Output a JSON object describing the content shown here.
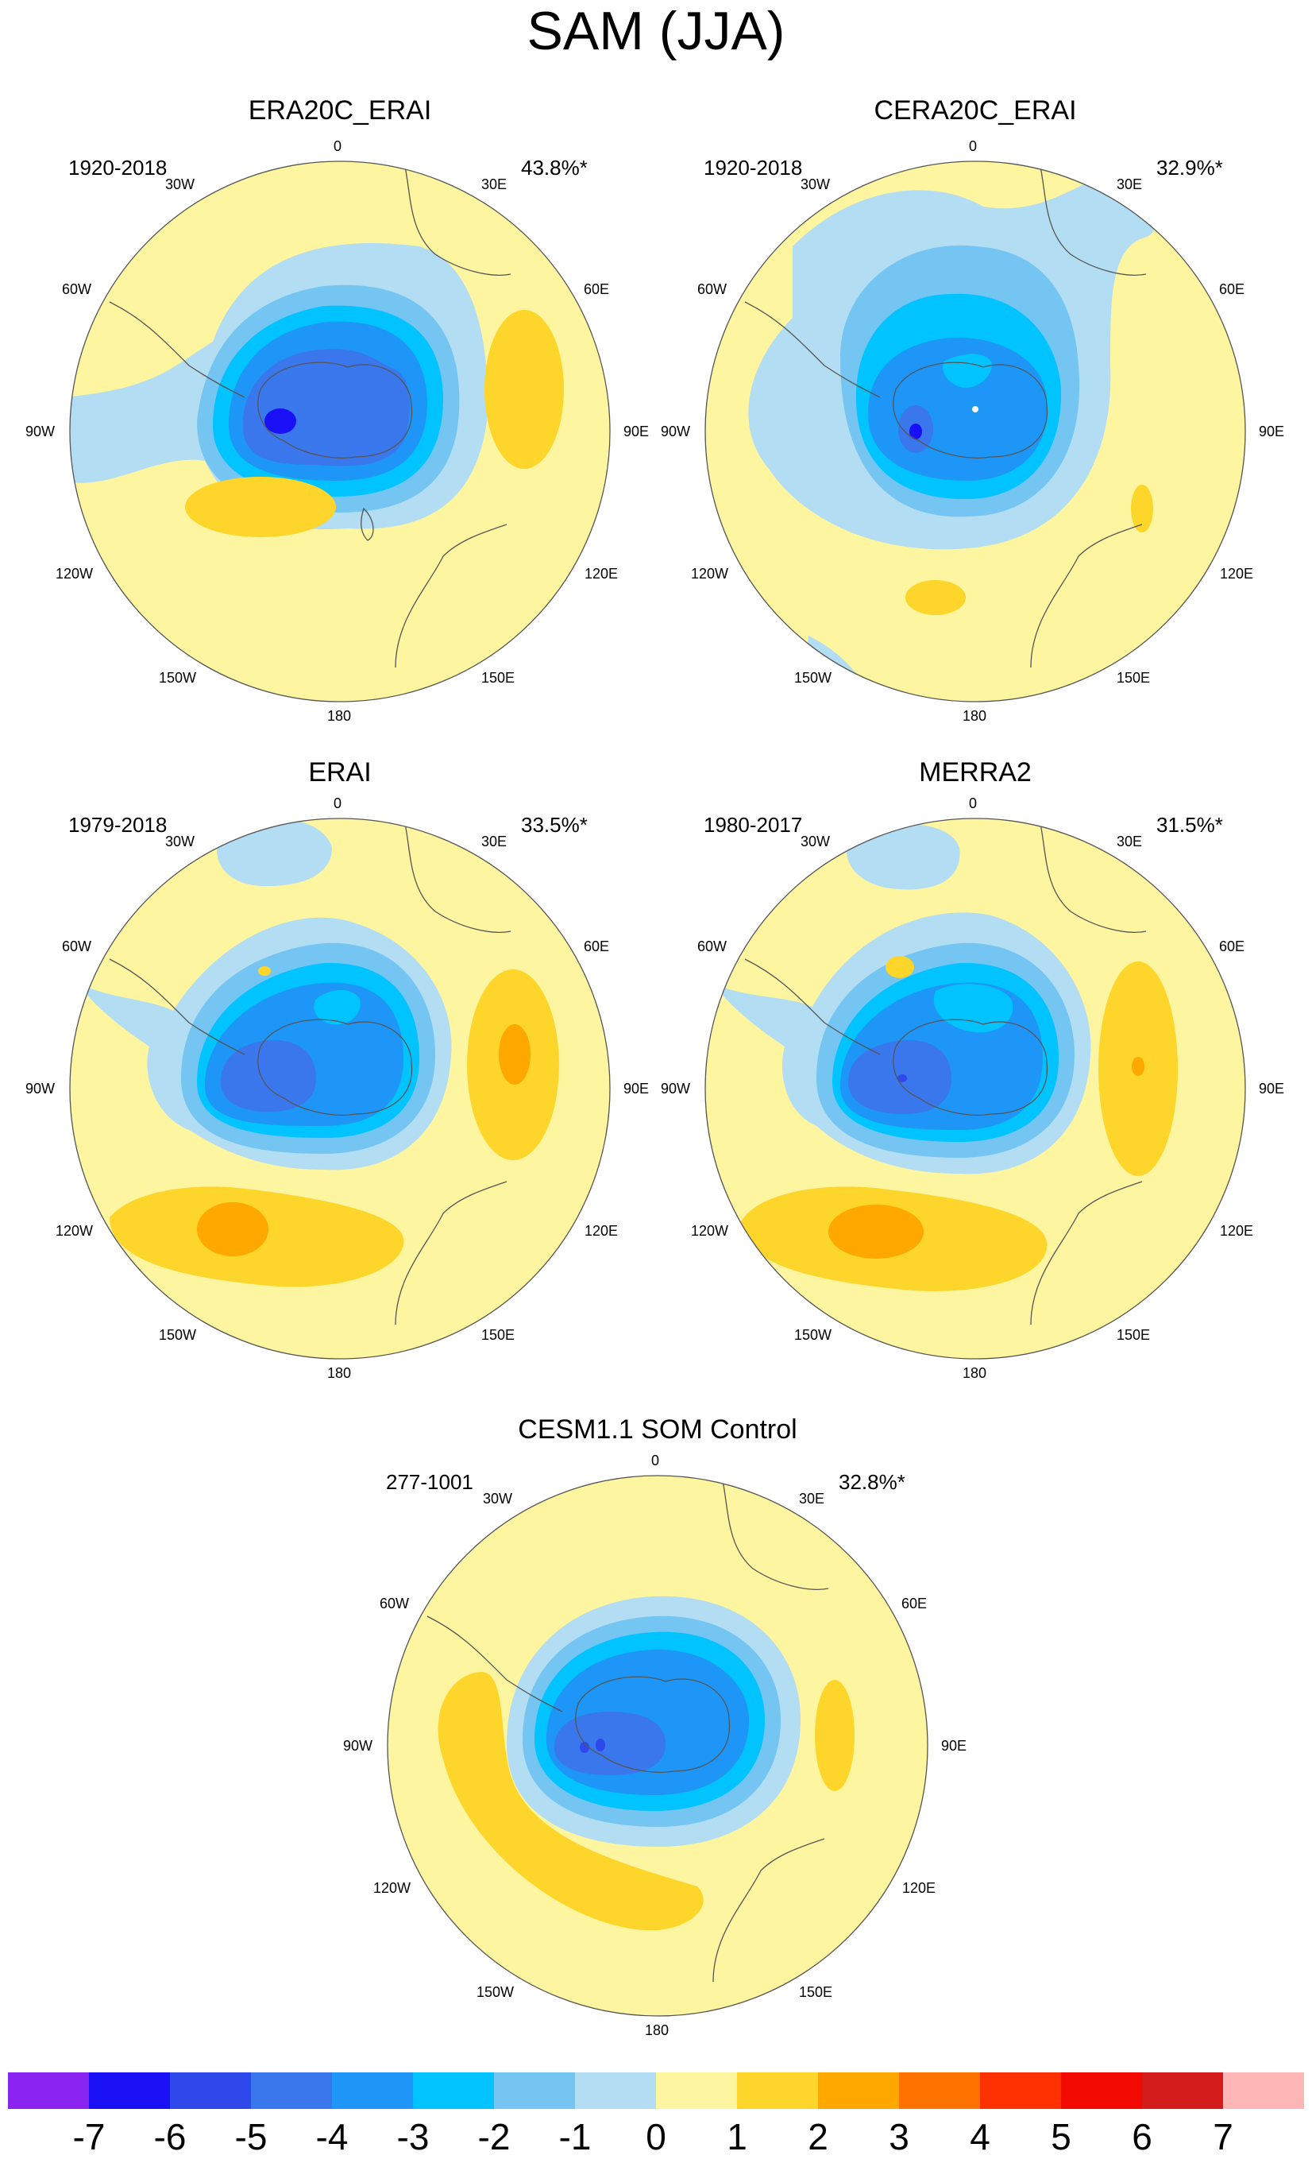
{
  "figure_title": "SAM (JJA)",
  "panels": [
    {
      "title": "ERA20C_ERAI",
      "period": "1920-2018",
      "variance": "43.8%*"
    },
    {
      "title": "CERA20C_ERAI",
      "period": "1920-2018",
      "variance": "32.9%*"
    },
    {
      "title": "ERAI",
      "period": "1979-2018",
      "variance": "33.5%*"
    },
    {
      "title": "MERRA2",
      "period": "1980-2017",
      "variance": "31.5%*"
    },
    {
      "title": "CESM1.1 SOM Control",
      "period": "277-1001",
      "variance": "32.8%*"
    }
  ],
  "longitude_labels": {
    "0": "0",
    "30E": "30E",
    "60E": "60E",
    "90E": "90E",
    "120E": "120E",
    "150E": "150E",
    "180": "180",
    "150W": "150W",
    "120W": "120W",
    "90W": "90W",
    "60W": "60W",
    "30W": "30W"
  },
  "colorbar": {
    "labels": [
      "-7",
      "-6",
      "-5",
      "-4",
      "-3",
      "-2",
      "-1",
      "0",
      "1",
      "2",
      "3",
      "4",
      "5",
      "6",
      "7"
    ],
    "colors": [
      "#8a24f0",
      "#1a10f5",
      "#2e48eb",
      "#3a76ec",
      "#1e96f7",
      "#00c3ff",
      "#74c5f2",
      "#b3ddf2",
      "#fdf5a0",
      "#fed52a",
      "#ffa800",
      "#ff7200",
      "#ff3100",
      "#f20a00",
      "#d41c1c",
      "#fdb5b5"
    ]
  },
  "colors": {
    "neg1": "#b3ddf2",
    "neg2": "#74c5f2",
    "neg3": "#00c3ff",
    "neg4": "#1e96f7",
    "neg5": "#3a76ec",
    "neg6": "#2e48eb",
    "neg7": "#1a10f5",
    "zero": "#fdf5a0",
    "pos1": "#fed52a",
    "pos2": "#ffa800"
  }
}
